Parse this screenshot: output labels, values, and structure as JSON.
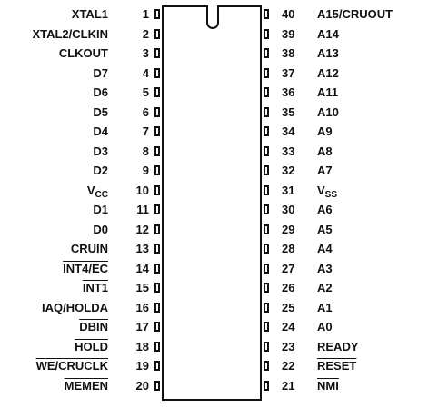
{
  "left_pins": [
    {
      "num": "1",
      "label": "XTAL1"
    },
    {
      "num": "2",
      "label": "XTAL2/CLKIN"
    },
    {
      "num": "3",
      "label": "CLKOUT"
    },
    {
      "num": "4",
      "label": "D7"
    },
    {
      "num": "5",
      "label": "D6"
    },
    {
      "num": "6",
      "label": "D5"
    },
    {
      "num": "7",
      "label": "D4"
    },
    {
      "num": "8",
      "label": "D3"
    },
    {
      "num": "9",
      "label": "D2"
    },
    {
      "num": "10",
      "label": "V",
      "sub": "CC"
    },
    {
      "num": "11",
      "label": "D1"
    },
    {
      "num": "12",
      "label": "D0"
    },
    {
      "num": "13",
      "label": "CRUIN"
    },
    {
      "num": "14",
      "label": "INT4/EC",
      "overline": true
    },
    {
      "num": "15",
      "label": "INT1",
      "overline": true
    },
    {
      "num": "16",
      "label": "IAQ/HOLDA"
    },
    {
      "num": "17",
      "label": "DBIN",
      "overline": true
    },
    {
      "num": "18",
      "label": "HOLD",
      "overline": true
    },
    {
      "num": "19",
      "label": "WE/CRUCLK",
      "overline": true
    },
    {
      "num": "20",
      "label": "MEMEN",
      "overline": true
    }
  ],
  "right_pins": [
    {
      "num": "40",
      "label": "A15/CRUOUT"
    },
    {
      "num": "39",
      "label": "A14"
    },
    {
      "num": "38",
      "label": "A13"
    },
    {
      "num": "37",
      "label": "A12"
    },
    {
      "num": "36",
      "label": "A11"
    },
    {
      "num": "35",
      "label": "A10"
    },
    {
      "num": "34",
      "label": "A9"
    },
    {
      "num": "33",
      "label": "A8"
    },
    {
      "num": "32",
      "label": "A7"
    },
    {
      "num": "31",
      "label": "V",
      "sub": "SS"
    },
    {
      "num": "30",
      "label": "A6"
    },
    {
      "num": "29",
      "label": "A5"
    },
    {
      "num": "28",
      "label": "A4"
    },
    {
      "num": "27",
      "label": "A3"
    },
    {
      "num": "26",
      "label": "A2"
    },
    {
      "num": "25",
      "label": "A1"
    },
    {
      "num": "24",
      "label": "A0"
    },
    {
      "num": "23",
      "label": "READY"
    },
    {
      "num": "22",
      "label": "RESET",
      "overline": true
    },
    {
      "num": "21",
      "label": "NMI",
      "overline": true
    }
  ]
}
